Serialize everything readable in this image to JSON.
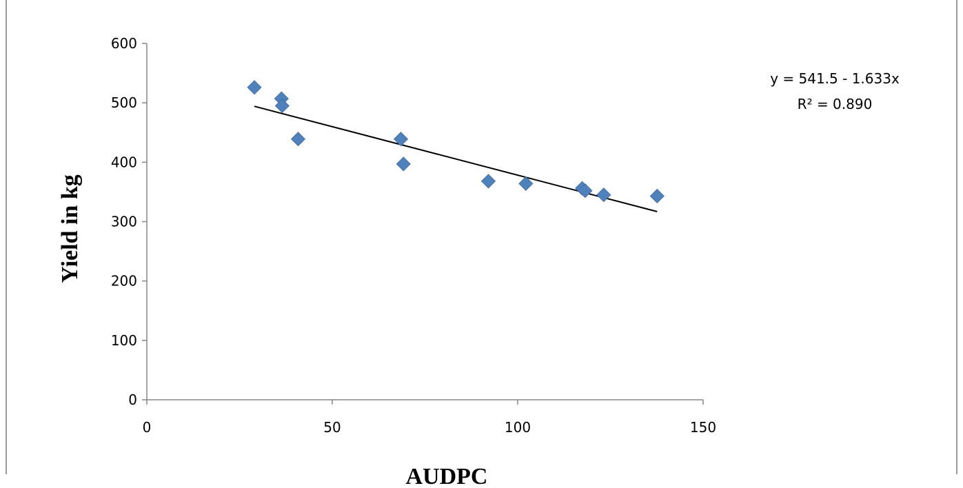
{
  "chart_data": {
    "type": "scatter",
    "title": "",
    "xlabel": "AUDPC",
    "ylabel": "Yield in kg",
    "xlim": [
      0,
      150
    ],
    "ylim": [
      0,
      600
    ],
    "x_ticks": [
      "0",
      "50",
      "100",
      "150"
    ],
    "y_ticks": [
      "0",
      "100",
      "200",
      "300",
      "400",
      "500",
      "600"
    ],
    "grid": false,
    "legend": "none",
    "marker_color": "#4F81BD",
    "series": [
      {
        "x": [
          29,
          36.3,
          36.5,
          40.8,
          68.5,
          69.2,
          92.1,
          102.2,
          117.4,
          118.2,
          123.2,
          137.6
        ],
        "y": [
          526,
          507,
          495,
          439,
          439,
          397,
          368,
          364,
          356,
          352,
          345,
          343
        ]
      }
    ],
    "trendline": {
      "type": "linear",
      "intercept": 541.5,
      "slope": -1.633,
      "x_range": [
        29,
        137.6
      ],
      "equation": "y = 541.5 - 1.633x",
      "r_squared": "R² = 0.890"
    }
  }
}
